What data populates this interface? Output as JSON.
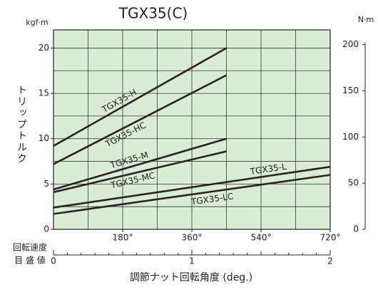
{
  "chart_data": {
    "type": "line",
    "title": "TGX35(C)",
    "y_unit": "kgf·m",
    "y2_unit": "N·m",
    "y_label": "トリップトルク",
    "x_label": "調節ナット回転角度 (deg.)",
    "x2_label": [
      "回転速度",
      "目 盛 値"
    ],
    "xlim": [
      0,
      720
    ],
    "xticks": [
      {
        "value": 180,
        "label": "180°"
      },
      {
        "value": 360,
        "label": "360°"
      },
      {
        "value": 540,
        "label": "540°"
      },
      {
        "value": 720,
        "label": "720°"
      }
    ],
    "xgrid": [
      90,
      180,
      270,
      360,
      450,
      540,
      630
    ],
    "ylim": [
      0,
      22
    ],
    "yticks": [
      0,
      5,
      10,
      15,
      20
    ],
    "ygrid": [
      2.5,
      5,
      7.5,
      10,
      12.5,
      15,
      17.5,
      20
    ],
    "y2lim": [
      0,
      216
    ],
    "y2ticks": [
      0,
      50,
      100,
      150,
      200
    ],
    "x2lim": [
      0,
      2
    ],
    "x2ticks": [
      0,
      1,
      2
    ],
    "grid": true,
    "background": "#d9ecd4",
    "series": [
      {
        "name": "TGX35-H",
        "color": "#2b2222",
        "x": [
          0,
          450
        ],
        "values": [
          9.2,
          20
        ]
      },
      {
        "name": "TGX35-HC",
        "color": "#2b2222",
        "x": [
          0,
          450
        ],
        "values": [
          7.2,
          17
        ]
      },
      {
        "name": "TGX35-M",
        "color": "#2b2222",
        "x": [
          0,
          450
        ],
        "values": [
          4.4,
          10
        ]
      },
      {
        "name": "TGX35-MC",
        "color": "#2b2222",
        "x": [
          0,
          450
        ],
        "values": [
          4.1,
          8.6
        ]
      },
      {
        "name": "TGX35-L",
        "color": "#2b2222",
        "x": [
          0,
          720
        ],
        "values": [
          2.4,
          6.9
        ]
      },
      {
        "name": "TGX35-LC",
        "color": "#2b2222",
        "x": [
          0,
          720
        ],
        "values": [
          1.7,
          6.0
        ]
      }
    ]
  }
}
